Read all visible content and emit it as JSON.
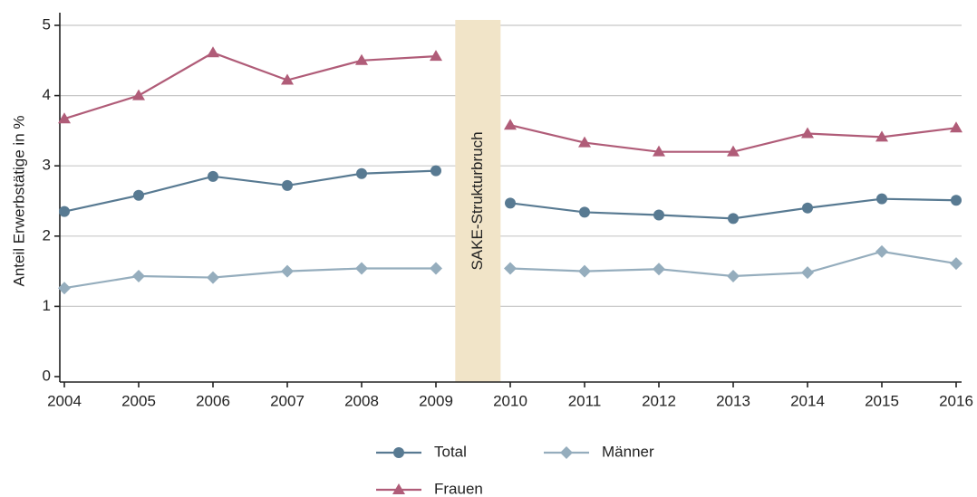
{
  "chart_data": {
    "type": "line",
    "y_label": "Anteil Erwerbstätige in %",
    "x": [
      2004,
      2005,
      2006,
      2007,
      2008,
      2009,
      2010,
      2011,
      2012,
      2013,
      2014,
      2015,
      2016
    ],
    "xlim": [
      2004,
      2016
    ],
    "xticks": [
      2004,
      2005,
      2006,
      2007,
      2008,
      2009,
      2010,
      2011,
      2012,
      2013,
      2014,
      2015,
      2016
    ],
    "ylim": [
      0,
      5
    ],
    "yticks": [
      0,
      1,
      2,
      3,
      4,
      5
    ],
    "grid": true,
    "break": {
      "label": "SAKE-Strukturbruch",
      "xlim": [
        2009.26,
        2009.87
      ],
      "color": "#f1e4c8"
    },
    "series": [
      {
        "name": "Total",
        "color": "#587a92",
        "marker": "circle",
        "values": [
          2.35,
          2.58,
          2.85,
          2.72,
          2.89,
          2.93,
          2.47,
          2.34,
          2.3,
          2.25,
          2.4,
          2.53,
          2.51
        ]
      },
      {
        "name": "Männer",
        "color": "#95adbd",
        "marker": "diamond",
        "values": [
          1.26,
          1.43,
          1.41,
          1.5,
          1.54,
          1.54,
          1.54,
          1.5,
          1.53,
          1.43,
          1.48,
          1.78,
          1.61
        ]
      },
      {
        "name": "Frauen",
        "color": "#b05c78",
        "marker": "triangle",
        "values": [
          3.67,
          4.0,
          4.61,
          4.22,
          4.5,
          4.56,
          3.58,
          3.33,
          3.2,
          3.2,
          3.46,
          3.41,
          3.54
        ]
      }
    ]
  }
}
